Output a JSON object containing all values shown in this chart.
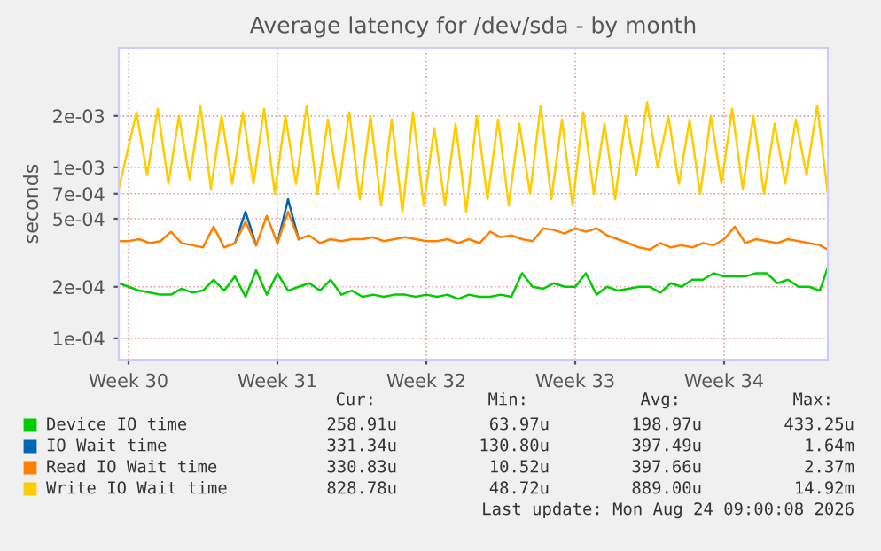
{
  "chart_data": {
    "type": "line",
    "title": "Average latency for /dev/sda - by month",
    "ylabel": "seconds",
    "log": "y",
    "grid": true,
    "legend": "bottom",
    "xlim": [
      "2026-07-22T01:00",
      "2026-08-24T09:00"
    ],
    "xticks": [
      {
        "value": "2026-07-22T12:00",
        "label": "Week 30"
      },
      {
        "value": "2026-07-29T12:00",
        "label": "Week 31"
      },
      {
        "value": "2026-08-05T12:00",
        "label": "Week 32"
      },
      {
        "value": "2026-08-12T12:00",
        "label": "Week 33"
      },
      {
        "value": "2026-08-19T12:00",
        "label": "Week 34"
      }
    ],
    "ylim": [
      7.5e-05,
      0.005
    ],
    "yticks": [
      {
        "value": 0.0001,
        "label": "1e-04"
      },
      {
        "value": 0.0002,
        "label": "2e-04"
      },
      {
        "value": 0.0005,
        "label": "5e-04"
      },
      {
        "value": 0.0007,
        "label": "7e-04"
      },
      {
        "value": 0.001,
        "label": "1e-03"
      },
      {
        "value": 0.002,
        "label": "2e-03"
      }
    ],
    "x": [
      "2026-07-22T01:00",
      "2026-07-22T12:00",
      "2026-07-23T00:00",
      "2026-07-23T12:00",
      "2026-07-24T00:00",
      "2026-07-24T12:00",
      "2026-07-25T00:00",
      "2026-07-25T12:00",
      "2026-07-26T00:00",
      "2026-07-26T12:00",
      "2026-07-27T00:00",
      "2026-07-27T12:00",
      "2026-07-28T00:00",
      "2026-07-28T12:00",
      "2026-07-29T00:00",
      "2026-07-29T12:00",
      "2026-07-30T00:00",
      "2026-07-30T12:00",
      "2026-07-31T00:00",
      "2026-07-31T12:00",
      "2026-08-01T00:00",
      "2026-08-01T12:00",
      "2026-08-02T00:00",
      "2026-08-02T12:00",
      "2026-08-03T00:00",
      "2026-08-03T12:00",
      "2026-08-04T00:00",
      "2026-08-04T12:00",
      "2026-08-05T00:00",
      "2026-08-05T12:00",
      "2026-08-06T00:00",
      "2026-08-06T12:00",
      "2026-08-07T00:00",
      "2026-08-07T12:00",
      "2026-08-08T00:00",
      "2026-08-08T12:00",
      "2026-08-09T00:00",
      "2026-08-09T12:00",
      "2026-08-10T00:00",
      "2026-08-10T12:00",
      "2026-08-11T00:00",
      "2026-08-11T12:00",
      "2026-08-12T00:00",
      "2026-08-12T12:00",
      "2026-08-13T00:00",
      "2026-08-13T12:00",
      "2026-08-14T00:00",
      "2026-08-14T12:00",
      "2026-08-15T00:00",
      "2026-08-15T12:00",
      "2026-08-16T00:00",
      "2026-08-16T12:00",
      "2026-08-17T00:00",
      "2026-08-17T12:00",
      "2026-08-18T00:00",
      "2026-08-18T12:00",
      "2026-08-19T00:00",
      "2026-08-19T12:00",
      "2026-08-20T00:00",
      "2026-08-20T12:00",
      "2026-08-21T00:00",
      "2026-08-21T12:00",
      "2026-08-22T00:00",
      "2026-08-22T12:00",
      "2026-08-23T00:00",
      "2026-08-23T12:00",
      "2026-08-24T00:00",
      "2026-08-24T09:00"
    ],
    "series": [
      {
        "name": "Device IO time",
        "color": "#00cc00",
        "values": [
          0.00021,
          0.0002,
          0.00019,
          0.000185,
          0.00018,
          0.00018,
          0.000195,
          0.000185,
          0.00019,
          0.00022,
          0.00019,
          0.00023,
          0.000175,
          0.00025,
          0.00018,
          0.00024,
          0.00019,
          0.0002,
          0.00021,
          0.00019,
          0.00022,
          0.00018,
          0.00019,
          0.000175,
          0.00018,
          0.000175,
          0.00018,
          0.00018,
          0.000175,
          0.00018,
          0.000175,
          0.00018,
          0.00017,
          0.00018,
          0.000175,
          0.000175,
          0.00018,
          0.000175,
          0.00024,
          0.0002,
          0.000195,
          0.00021,
          0.0002,
          0.0002,
          0.00024,
          0.00018,
          0.0002,
          0.00019,
          0.000195,
          0.0002,
          0.0002,
          0.000185,
          0.00021,
          0.0002,
          0.00022,
          0.00022,
          0.00024,
          0.00023,
          0.00023,
          0.00023,
          0.00024,
          0.00024,
          0.00021,
          0.00022,
          0.0002,
          0.0002,
          0.00019,
          0.00026
        ]
      },
      {
        "name": "IO Wait time",
        "color": "#0066b3",
        "values": [
          null,
          null,
          null,
          null,
          null,
          null,
          null,
          null,
          null,
          null,
          null,
          0.00036,
          0.00055,
          0.00035,
          null,
          0.00036,
          0.00065,
          0.00038,
          null,
          null,
          null,
          null,
          null,
          null,
          null,
          null,
          null,
          null,
          null,
          null,
          null,
          null,
          null,
          null,
          null,
          null,
          null,
          null,
          null,
          null,
          null,
          null,
          null,
          null,
          null,
          null,
          null,
          null,
          null,
          null,
          null,
          null,
          null,
          null,
          null,
          null,
          null,
          null,
          null,
          null,
          null,
          null,
          null,
          null,
          null,
          null,
          null,
          null
        ]
      },
      {
        "name": "Read IO Wait time",
        "color": "#ff8000",
        "values": [
          0.00037,
          0.00037,
          0.00038,
          0.00036,
          0.00037,
          0.00042,
          0.00036,
          0.00035,
          0.00034,
          0.00045,
          0.00034,
          0.00036,
          0.00048,
          0.00035,
          0.00052,
          0.00036,
          0.00055,
          0.00038,
          0.0004,
          0.00036,
          0.00038,
          0.00037,
          0.00038,
          0.00038,
          0.00039,
          0.00037,
          0.00038,
          0.00039,
          0.00038,
          0.00037,
          0.00037,
          0.00038,
          0.00036,
          0.00038,
          0.00036,
          0.00042,
          0.00039,
          0.0004,
          0.00038,
          0.00037,
          0.00044,
          0.00043,
          0.00041,
          0.00044,
          0.00042,
          0.00044,
          0.0004,
          0.00038,
          0.00036,
          0.00034,
          0.00033,
          0.00036,
          0.00034,
          0.00035,
          0.00034,
          0.00036,
          0.00035,
          0.00038,
          0.00045,
          0.00036,
          0.00038,
          0.00037,
          0.00036,
          0.00038,
          0.00037,
          0.00036,
          0.00035,
          0.00033
        ]
      },
      {
        "name": "Write IO Wait time",
        "color": "#ffcc00",
        "x": [
          "2026-07-22T01:00",
          "2026-07-22T21:00",
          "2026-07-23T09:00",
          "2026-07-23T21:00",
          "2026-07-24T09:00",
          "2026-07-24T21:00",
          "2026-07-25T09:00",
          "2026-07-25T21:00",
          "2026-07-26T09:00",
          "2026-07-26T21:00",
          "2026-07-27T09:00",
          "2026-07-27T21:00",
          "2026-07-28T09:00",
          "2026-07-28T21:00",
          "2026-07-29T09:00",
          "2026-07-29T21:00",
          "2026-07-30T09:00",
          "2026-07-30T21:00",
          "2026-07-31T09:00",
          "2026-07-31T21:00",
          "2026-08-01T09:00",
          "2026-08-01T21:00",
          "2026-08-02T09:00",
          "2026-08-02T21:00",
          "2026-08-03T09:00",
          "2026-08-03T21:00",
          "2026-08-04T09:00",
          "2026-08-04T21:00",
          "2026-08-05T09:00",
          "2026-08-05T21:00",
          "2026-08-06T09:00",
          "2026-08-06T21:00",
          "2026-08-07T09:00",
          "2026-08-07T21:00",
          "2026-08-08T09:00",
          "2026-08-08T21:00",
          "2026-08-09T09:00",
          "2026-08-09T21:00",
          "2026-08-10T09:00",
          "2026-08-10T21:00",
          "2026-08-11T09:00",
          "2026-08-11T21:00",
          "2026-08-12T09:00",
          "2026-08-12T21:00",
          "2026-08-13T09:00",
          "2026-08-13T21:00",
          "2026-08-14T09:00",
          "2026-08-14T21:00",
          "2026-08-15T09:00",
          "2026-08-15T21:00",
          "2026-08-16T09:00",
          "2026-08-16T21:00",
          "2026-08-17T09:00",
          "2026-08-17T21:00",
          "2026-08-18T09:00",
          "2026-08-18T21:00",
          "2026-08-19T09:00",
          "2026-08-19T21:00",
          "2026-08-20T09:00",
          "2026-08-20T21:00",
          "2026-08-21T09:00",
          "2026-08-21T21:00",
          "2026-08-22T09:00",
          "2026-08-22T21:00",
          "2026-08-23T09:00",
          "2026-08-23T21:00",
          "2026-08-24T09:00"
        ],
        "values": [
          0.00075,
          0.0021,
          0.0009,
          0.0022,
          0.0008,
          0.002,
          0.00085,
          0.0023,
          0.00075,
          0.002,
          0.0008,
          0.0021,
          0.0008,
          0.0022,
          0.0007,
          0.002,
          0.0008,
          0.0023,
          0.0007,
          0.0019,
          0.00075,
          0.0021,
          0.00065,
          0.002,
          0.0006,
          0.0019,
          0.00055,
          0.0021,
          0.0006,
          0.0017,
          0.0006,
          0.0018,
          0.00055,
          0.002,
          0.00065,
          0.0019,
          0.0006,
          0.0018,
          0.0007,
          0.0023,
          0.00065,
          0.0019,
          0.0006,
          0.0021,
          0.0007,
          0.0018,
          0.00065,
          0.002,
          0.0009,
          0.0024,
          0.001,
          0.002,
          0.0008,
          0.0019,
          0.0007,
          0.002,
          0.0008,
          0.0022,
          0.00075,
          0.002,
          0.0007,
          0.0018,
          0.0008,
          0.0019,
          0.0009,
          0.0023,
          0.0007
        ]
      }
    ],
    "annotations": [
      "Cur:",
      "Min:",
      "Avg:",
      "Max:",
      "258.91u",
      "63.97u",
      "198.97u",
      "433.25u",
      "331.34u",
      "130.80u",
      "397.49u",
      "1.64m",
      "330.83u",
      "10.52u",
      "397.66u",
      "2.37m",
      "828.78u",
      "48.72u",
      "889.00u",
      "14.92m",
      "Last update: Mon Aug 24 09:00:08 2026"
    ]
  }
}
